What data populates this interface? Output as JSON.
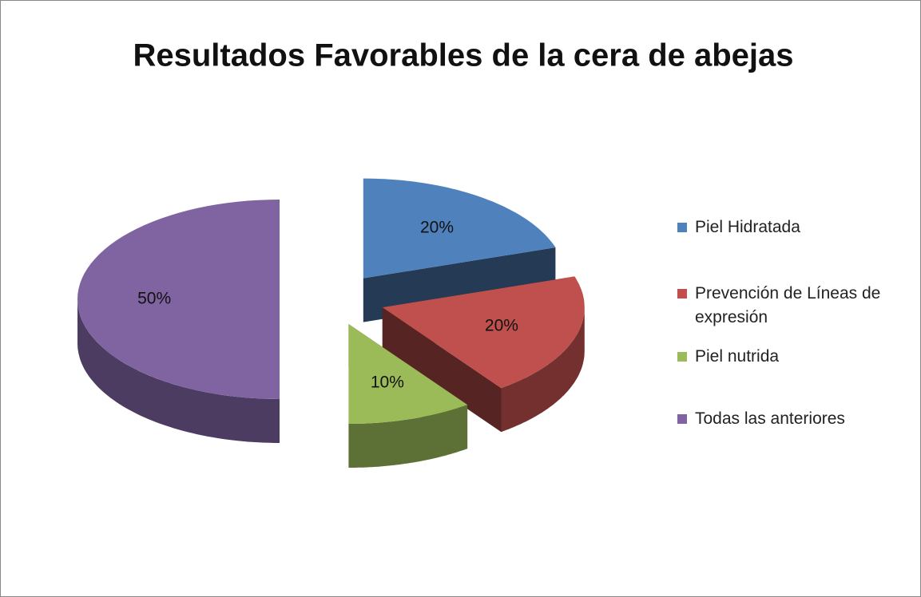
{
  "chart_data": {
    "type": "pie",
    "title": "Resultados Favorables de la cera de abejas",
    "categories": [
      "Piel Hidratada",
      "Prevención de Líneas de expresión",
      "Piel nutrida",
      "Todas las anteriores"
    ],
    "values": [
      20,
      20,
      10,
      50
    ],
    "value_labels": [
      "20%",
      "20%",
      "10%",
      "50%"
    ],
    "colors": [
      "#4f81bd",
      "#c0504d",
      "#9bbb59",
      "#8064a2"
    ],
    "legend": "right"
  }
}
